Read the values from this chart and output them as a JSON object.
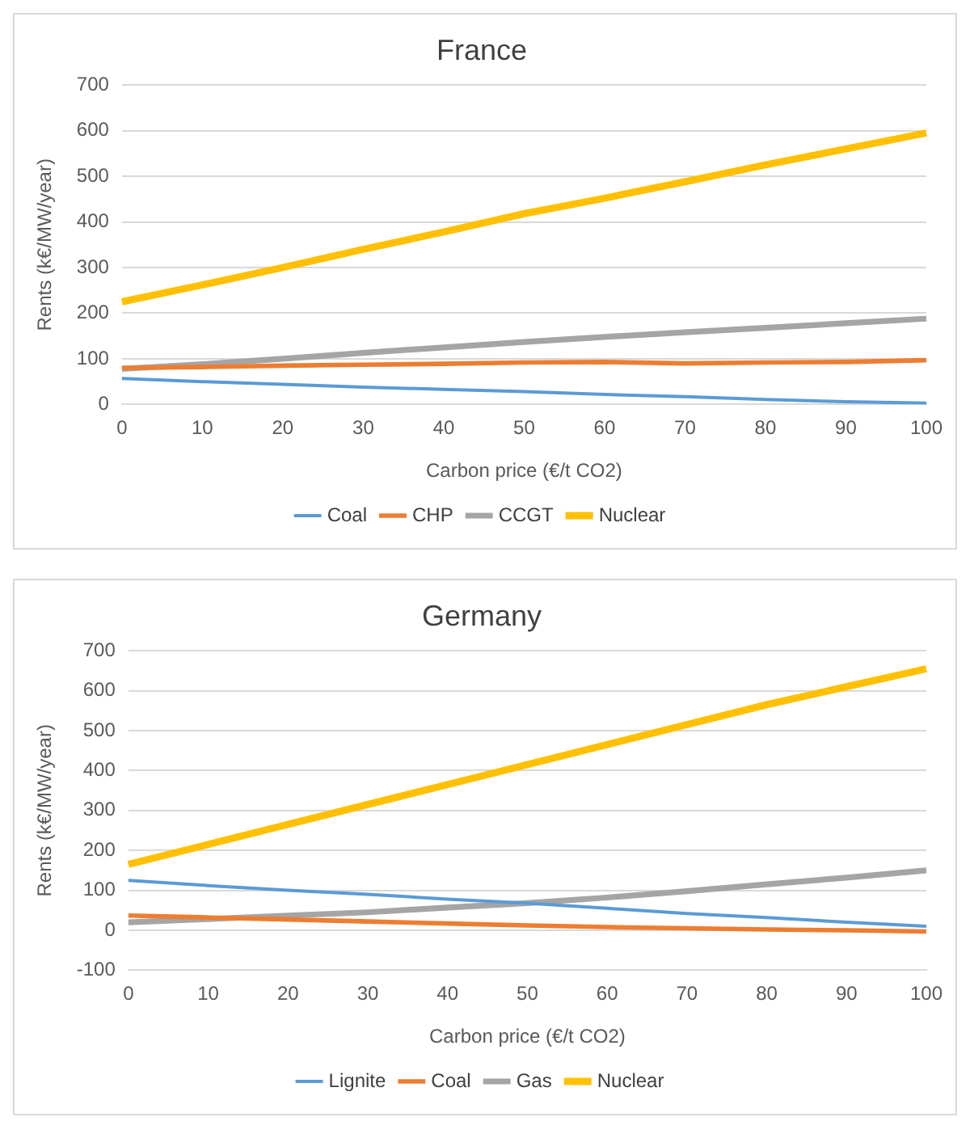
{
  "chart_data": [
    {
      "type": "line",
      "title": "France",
      "xlabel": "Carbon price (€/t CO2)",
      "ylabel": "Rents (k€/MW/year)",
      "categories": [
        "0",
        "10",
        "20",
        "30",
        "40",
        "50",
        "60",
        "70",
        "80",
        "90",
        "100"
      ],
      "ylim": [
        0,
        700
      ],
      "yticks": [
        0,
        100,
        200,
        300,
        400,
        500,
        600,
        700
      ],
      "grid": "y",
      "legend": "bottom",
      "marker": "none",
      "series": [
        {
          "name": "Coal",
          "color": "#5b9bd5",
          "values": [
            57,
            50,
            44,
            38,
            33,
            28,
            22,
            17,
            11,
            6,
            3
          ]
        },
        {
          "name": "CHP",
          "color": "#ed7d31",
          "values": [
            80,
            82,
            85,
            87,
            89,
            92,
            93,
            90,
            92,
            93,
            97
          ]
        },
        {
          "name": "CCGT",
          "color": "#a5a5a5",
          "values": [
            78,
            88,
            100,
            113,
            125,
            137,
            148,
            158,
            168,
            178,
            188
          ]
        },
        {
          "name": "Nuclear",
          "color": "#ffc000",
          "values": [
            225,
            262,
            300,
            340,
            378,
            418,
            452,
            488,
            525,
            560,
            595
          ]
        }
      ]
    },
    {
      "type": "line",
      "title": "Germany",
      "xlabel": "Carbon price (€/t CO2)",
      "ylabel": "Rents (k€/MW/year)",
      "categories": [
        "0",
        "10",
        "20",
        "30",
        "40",
        "50",
        "60",
        "70",
        "80",
        "90",
        "100"
      ],
      "ylim": [
        -100,
        700
      ],
      "yticks": [
        -100,
        0,
        100,
        200,
        300,
        400,
        500,
        600,
        700
      ],
      "grid": "y",
      "legend": "bottom",
      "marker": "none",
      "series": [
        {
          "name": "Lignite",
          "color": "#5b9bd5",
          "values": [
            125,
            112,
            100,
            90,
            78,
            68,
            55,
            42,
            32,
            20,
            10
          ]
        },
        {
          "name": "Coal",
          "color": "#ed7d31",
          "values": [
            37,
            32,
            27,
            22,
            17,
            12,
            8,
            5,
            2,
            0,
            -3
          ]
        },
        {
          "name": "Gas",
          "color": "#a5a5a5",
          "values": [
            20,
            28,
            37,
            45,
            57,
            68,
            82,
            98,
            115,
            132,
            150
          ]
        },
        {
          "name": "Nuclear",
          "color": "#ffc000",
          "values": [
            165,
            215,
            265,
            315,
            365,
            415,
            465,
            515,
            565,
            610,
            655
          ]
        }
      ]
    }
  ]
}
